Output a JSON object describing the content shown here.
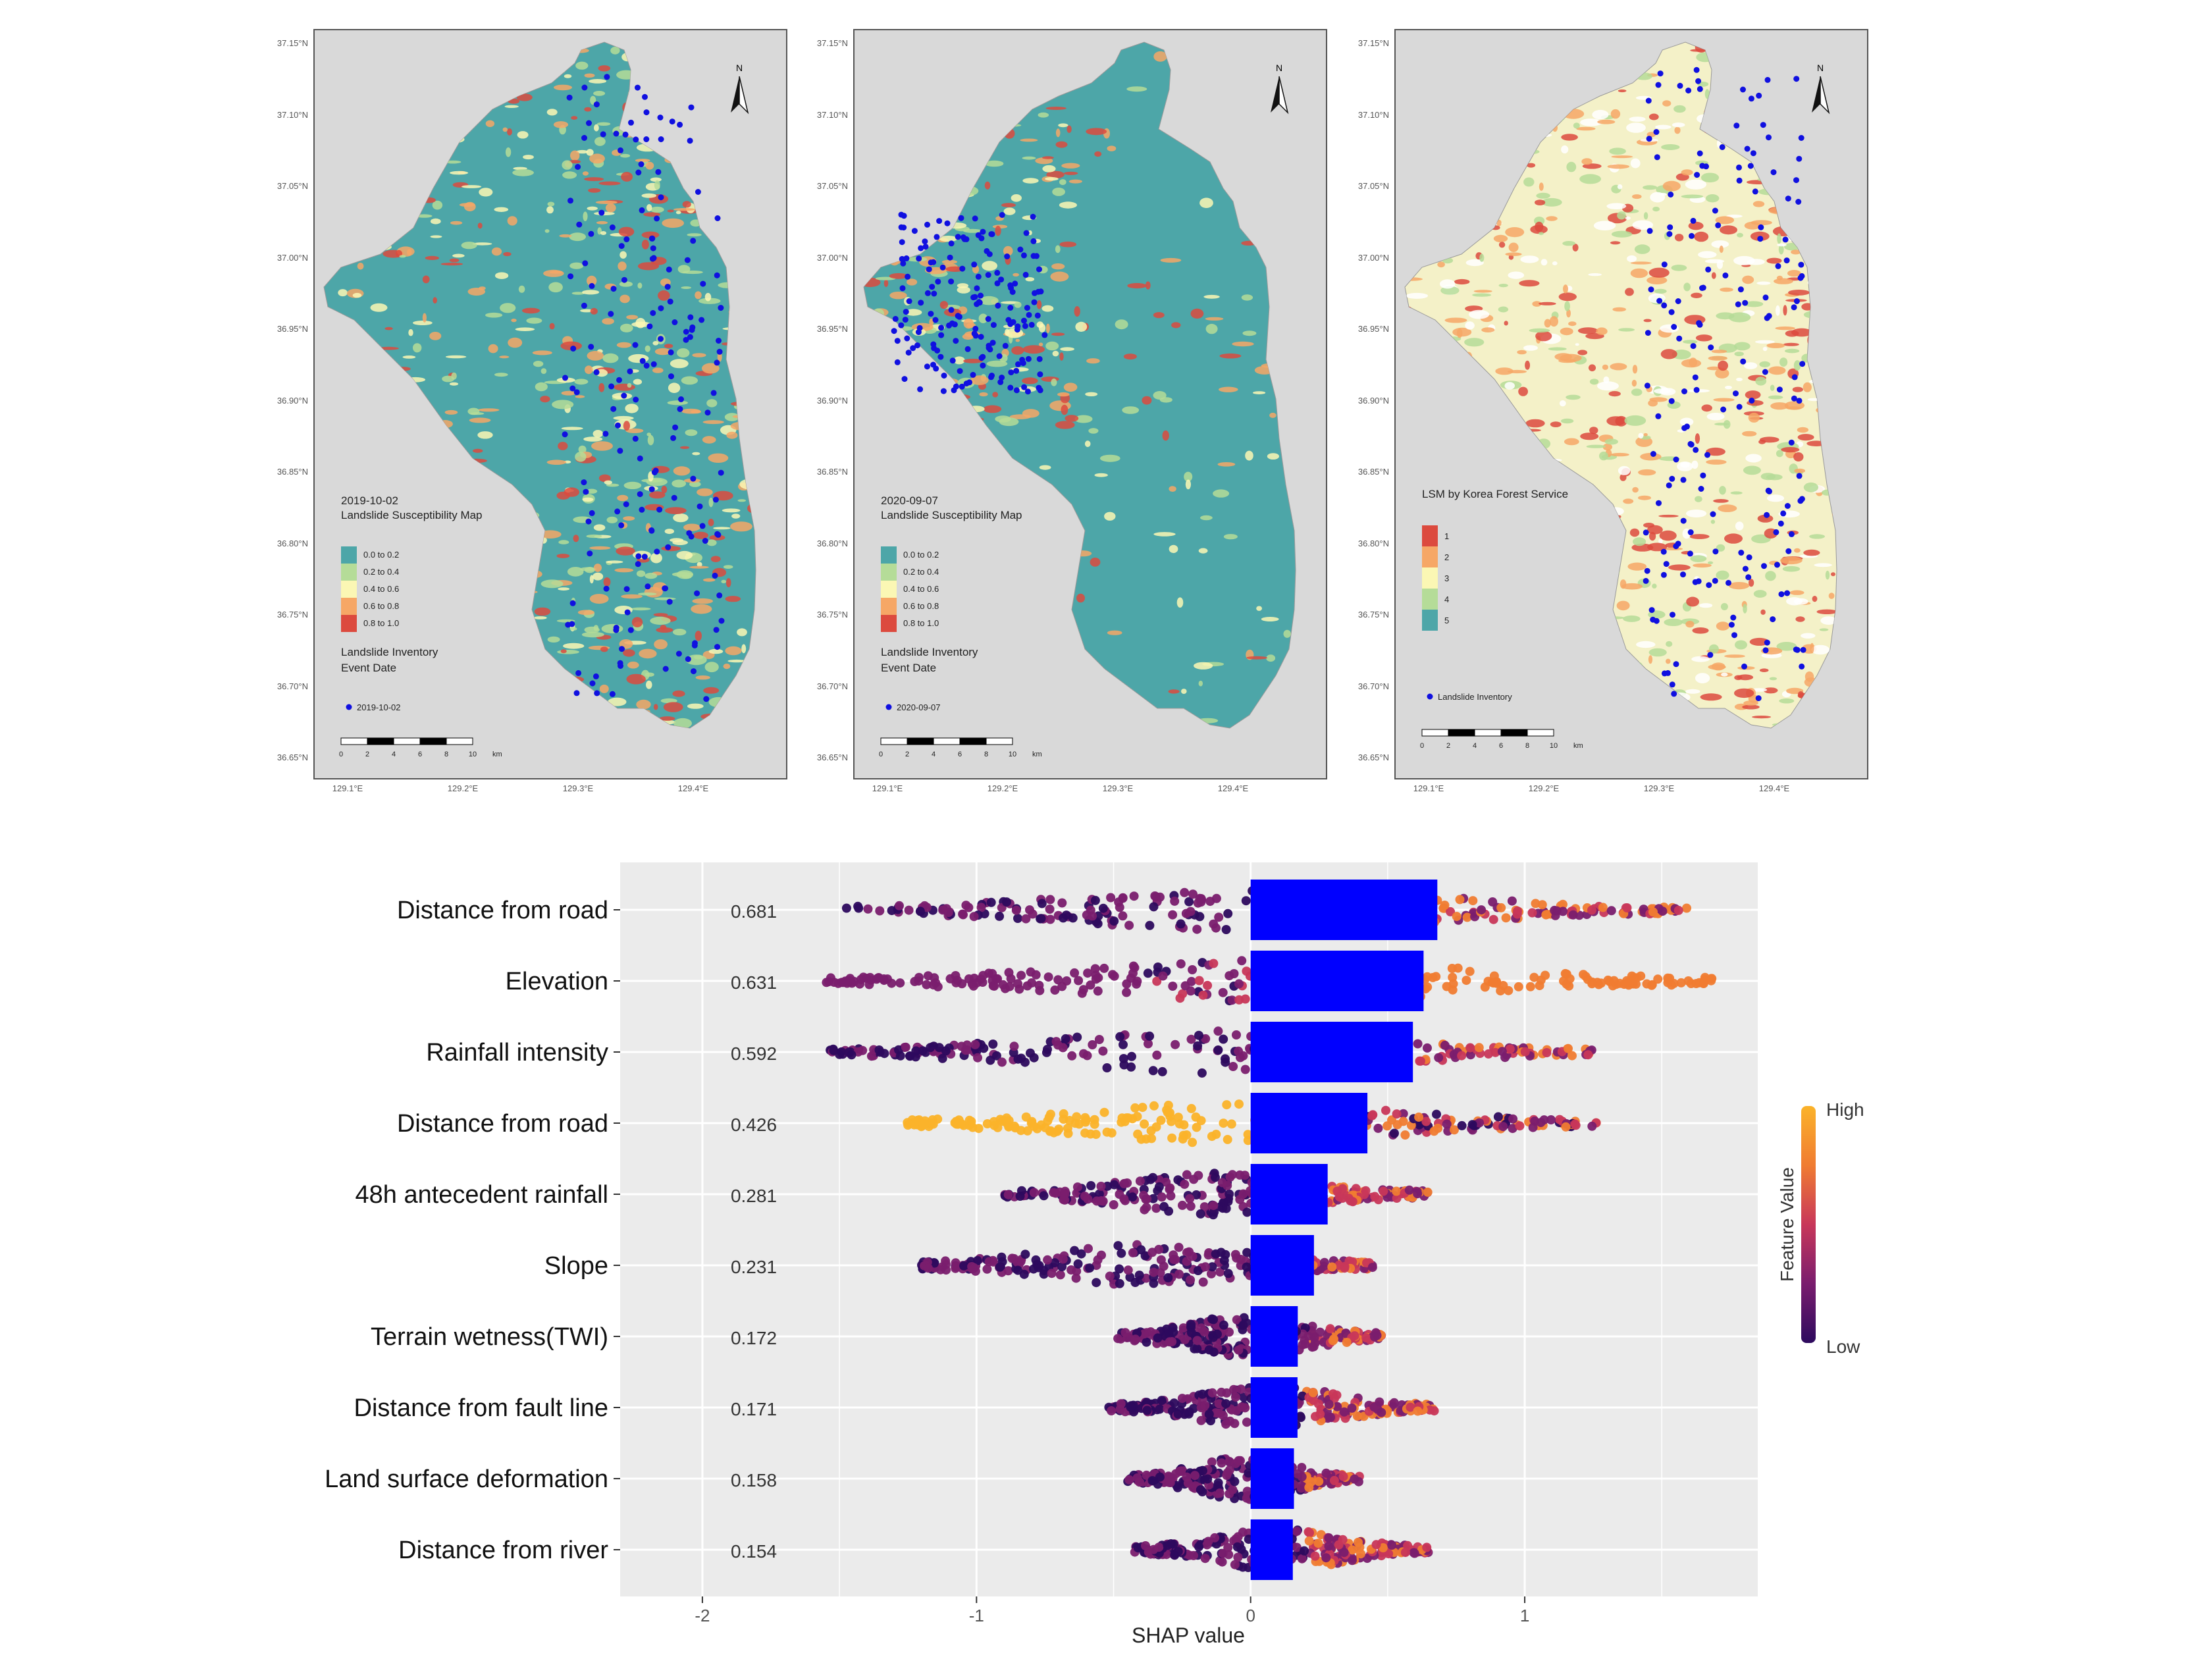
{
  "maps": [
    {
      "id": "map1",
      "legend_title_lines": [
        "2019-10-02",
        "Landslide Susceptibility Map"
      ],
      "legend_items": [
        "0.0 to 0.2",
        "0.2 to 0.4",
        "0.4 to 0.6",
        "0.6 to 0.8",
        "0.8 to 1.0"
      ],
      "legend_colors": [
        "#4da6a8",
        "#b5dc98",
        "#fbf7b4",
        "#f6a766",
        "#dc4a3e"
      ],
      "inventory_title_lines": [
        "Landslide Inventory",
        "Event Date"
      ],
      "inventory_label": "2019-10-02",
      "north": "N"
    },
    {
      "id": "map2",
      "legend_title_lines": [
        "2020-09-07",
        "Landslide Susceptibility Map"
      ],
      "legend_items": [
        "0.0 to 0.2",
        "0.2 to 0.4",
        "0.4 to 0.6",
        "0.6 to 0.8",
        "0.8 to 1.0"
      ],
      "legend_colors": [
        "#4da6a8",
        "#b5dc98",
        "#fbf7b4",
        "#f6a766",
        "#dc4a3e"
      ],
      "inventory_title_lines": [
        "Landslide Inventory",
        "Event Date"
      ],
      "inventory_label": "2020-09-07",
      "north": "N"
    },
    {
      "id": "map3",
      "legend_title_lines": [
        "LSM by Korea Forest Service"
      ],
      "legend_items": [
        "1",
        "2",
        "3",
        "4",
        "5"
      ],
      "legend_colors": [
        "#dc4a3e",
        "#f6a766",
        "#fbf7b4",
        "#b5dc98",
        "#4da6a8"
      ],
      "inventory_title_lines": [],
      "inventory_label": "Landslide Inventory",
      "north": "N"
    }
  ],
  "map_axes": {
    "lat_labels": [
      "37.15°N",
      "37.10°N",
      "37.05°N",
      "37.00°N",
      "36.95°N",
      "36.90°N",
      "36.85°N",
      "36.80°N",
      "36.75°N",
      "36.70°N",
      "36.65°N"
    ],
    "lon_labels": [
      "129.1°E",
      "129.2°E",
      "129.3°E",
      "129.4°E"
    ],
    "scalebar_labels": [
      "0",
      "2",
      "4",
      "6",
      "8",
      "10"
    ],
    "scalebar_unit": "km"
  },
  "chart_data": {
    "type": "bar",
    "categories": [
      "Distance from road",
      "Elevation",
      "Rainfall intensity",
      "Distance from road",
      "48h antecedent rainfall",
      "Slope",
      "Terrain wetness(TWI)",
      "Distance from fault line",
      "Land surface deformation",
      "Distance from river"
    ],
    "values": [
      0.681,
      0.631,
      0.592,
      0.426,
      0.281,
      0.231,
      0.172,
      0.171,
      0.158,
      0.154
    ],
    "value_labels": [
      "0.681",
      "0.631",
      "0.592",
      "0.426",
      "0.281",
      "0.231",
      "0.172",
      "0.171",
      "0.158",
      "0.154"
    ],
    "shap_ranges": [
      [
        -1.5,
        1.6
      ],
      [
        -1.55,
        1.7
      ],
      [
        -1.55,
        1.25
      ],
      [
        -1.28,
        1.28
      ],
      [
        -0.9,
        0.65
      ],
      [
        -1.25,
        0.47
      ],
      [
        -0.5,
        0.48
      ],
      [
        -0.52,
        0.67
      ],
      [
        -0.45,
        0.4
      ],
      [
        -0.43,
        0.65
      ]
    ],
    "bar_color": "#0000ff",
    "xlabel": "SHAP value",
    "x_ticks": [
      -2,
      -1,
      0,
      1
    ],
    "xlim": [
      -2.3,
      1.85
    ],
    "colorbar": {
      "title": "Feature Value",
      "high": "High",
      "low": "Low",
      "colors": [
        "#2d0a5e",
        "#7a1d6e",
        "#c8375a",
        "#f07c32",
        "#fbb32a"
      ]
    },
    "grid": true
  }
}
